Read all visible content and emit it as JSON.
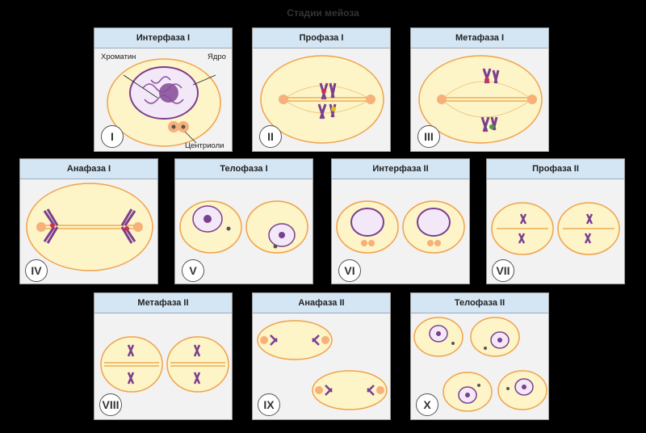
{
  "title": "Стадии мейоза",
  "panels": [
    {
      "head": "Интерфаза I",
      "roman": "I"
    },
    {
      "head": "Профаза I",
      "roman": "II"
    },
    {
      "head": "Метафаза I",
      "roman": "III"
    },
    {
      "head": "Анафаза I",
      "roman": "IV"
    },
    {
      "head": "Телофаза I",
      "roman": "V"
    },
    {
      "head": "Интерфаза II",
      "roman": "VI"
    },
    {
      "head": "Профаза II",
      "roman": "VII"
    },
    {
      "head": "Метафаза II",
      "roman": "VIII"
    },
    {
      "head": "Анафаза II",
      "roman": "IX"
    },
    {
      "head": "Телофаза II",
      "roman": "X"
    }
  ],
  "labels": {
    "chromatin": "Хроматин",
    "nucleus": "Ядро",
    "centrioles": "Центриоли"
  },
  "colors": {
    "cell_fill": "#fdf4c8",
    "cell_stroke": "#f0a24a",
    "chromatin": "#7a3f8e",
    "header": "#d4e6f4"
  }
}
